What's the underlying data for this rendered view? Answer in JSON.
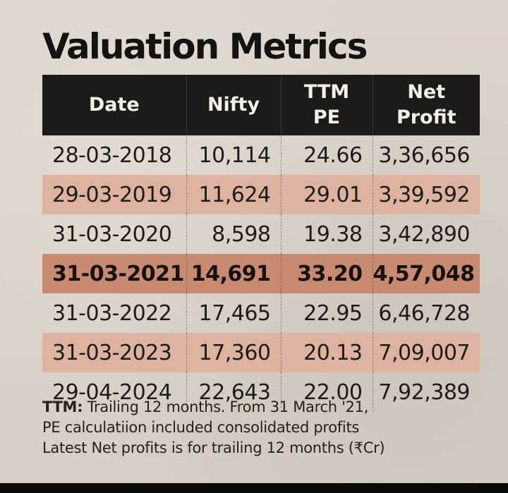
{
  "title": "Valuation Metrics",
  "table": {
    "headers": {
      "date": "Date",
      "nifty": "Nifty",
      "pe_line1": "TTM",
      "pe_line2": "PE",
      "profit_line1": "Net",
      "profit_line2": "Profit"
    },
    "rows": [
      {
        "date": "28-03-2018",
        "nifty": "10,114",
        "pe": "24.66",
        "profit": "3,36,656"
      },
      {
        "date": "29-03-2019",
        "nifty": "11,624",
        "pe": "29.01",
        "profit": "3,39,592"
      },
      {
        "date": "31-03-2020",
        "nifty": "8,598",
        "pe": "19.38",
        "profit": "3,42,890"
      },
      {
        "date": "31-03-2021",
        "nifty": "14,691",
        "pe": "33.20",
        "profit": "4,57,048"
      },
      {
        "date": "31-03-2022",
        "nifty": "17,465",
        "pe": "22.95",
        "profit": "6,46,728"
      },
      {
        "date": "31-03-2023",
        "nifty": "17,360",
        "pe": "20.13",
        "profit": "7,09,007"
      },
      {
        "date": "29-04-2024",
        "nifty": "22,643",
        "pe": "22.00",
        "profit": "7,92,389"
      }
    ]
  },
  "notes": {
    "ttm_label": "TTM:",
    "line1": " Trailing 12 months. From 31 March '21,",
    "line2": "PE calculatiion included consolidated profits",
    "line3": "Latest Net profits is for trailing 12 months (₹Cr)"
  },
  "colors": {
    "header_bg": "#1d1b1a",
    "row_shade": "#ddb3a0",
    "row_highlight": "#c98a72",
    "paper": "#d9d2c8"
  }
}
